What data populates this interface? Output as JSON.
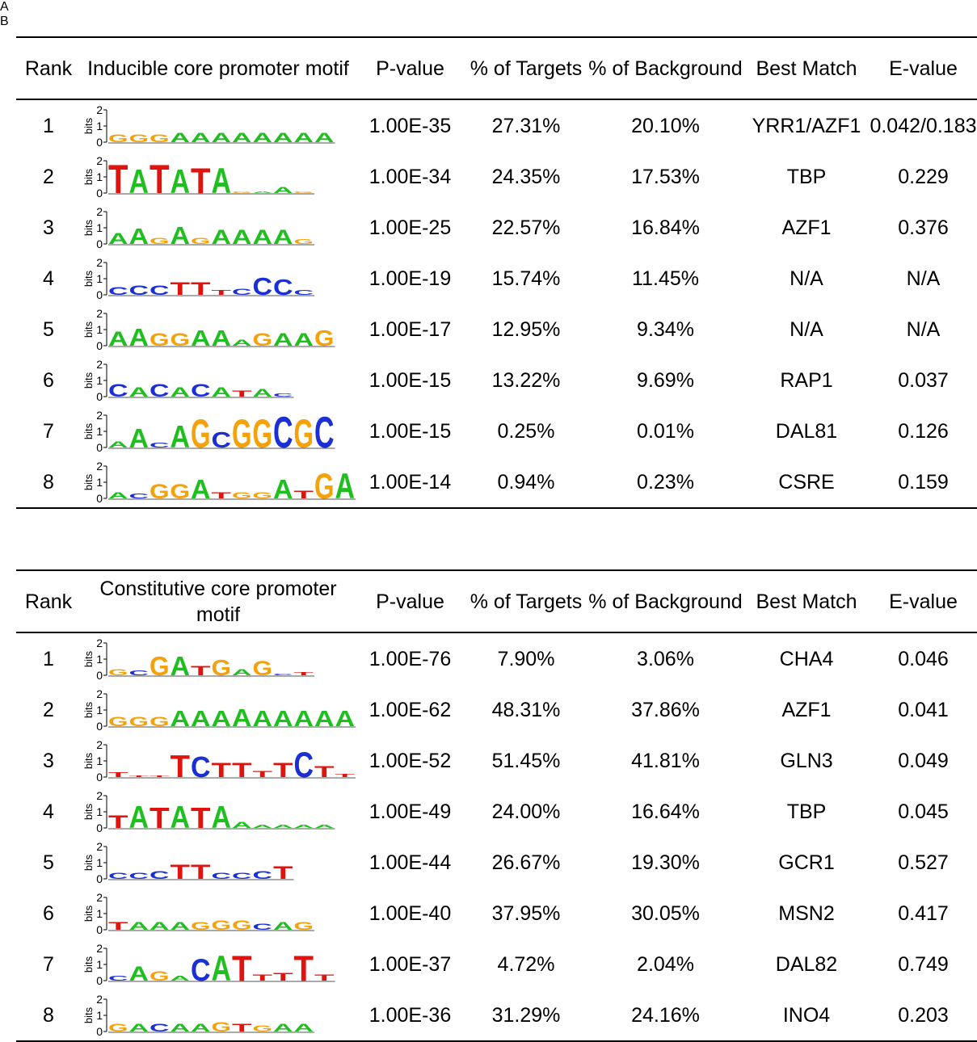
{
  "panels": [
    {
      "label": "A",
      "header": [
        "Rank",
        "Inducible core promoter motif",
        "P-value",
        "% of Targets",
        "% of Background",
        "Best Match",
        "E-value"
      ],
      "rows": [
        {
          "rank": 1,
          "logo": {
            "letters": [
              "G",
              "G",
              "G",
              "A",
              "A",
              "A",
              "A",
              "A",
              "A",
              "A",
              "A"
            ],
            "heights": [
              0.5,
              0.5,
              0.5,
              0.6,
              0.6,
              0.6,
              0.6,
              0.6,
              0.6,
              0.6,
              0.6
            ]
          },
          "p_value": "1.00E-35",
          "targets": "27.31%",
          "background": "20.10%",
          "best_match": "YRR1/AZF1",
          "e_value": "0.042/0.183"
        },
        {
          "rank": 2,
          "logo": {
            "letters": [
              "T",
              "A",
              "T",
              "A",
              "T",
              "A",
              "G",
              "A",
              "A",
              "G"
            ],
            "heights": [
              1.8,
              1.5,
              1.8,
              1.5,
              1.6,
              1.6,
              0.1,
              0.1,
              0.4,
              0.1
            ]
          },
          "p_value": "1.00E-34",
          "targets": "24.35%",
          "background": "17.53%",
          "best_match": "TBP",
          "e_value": "0.229"
        },
        {
          "rank": 3,
          "logo": {
            "letters": [
              "A",
              "A",
              "G",
              "A",
              "G",
              "A",
              "A",
              "A",
              "A",
              "G"
            ],
            "heights": [
              0.7,
              1.0,
              0.4,
              1.1,
              0.4,
              0.9,
              0.9,
              0.9,
              0.9,
              0.3
            ]
          },
          "p_value": "1.00E-25",
          "targets": "22.57%",
          "background": "16.84%",
          "best_match": "AZF1",
          "e_value": "0.376"
        },
        {
          "rank": 4,
          "logo": {
            "letters": [
              "C",
              "C",
              "C",
              "T",
              "T",
              "T",
              "C",
              "C",
              "C",
              "C"
            ],
            "heights": [
              0.5,
              0.6,
              0.6,
              0.8,
              0.8,
              0.3,
              0.4,
              1.1,
              1.0,
              0.3
            ]
          },
          "p_value": "1.00E-19",
          "targets": "15.74%",
          "background": "11.45%",
          "best_match": "N/A",
          "e_value": "N/A"
        },
        {
          "rank": 5,
          "logo": {
            "letters": [
              "A",
              "A",
              "G",
              "G",
              "A",
              "A",
              "A",
              "G",
              "A",
              "A",
              "G"
            ],
            "heights": [
              0.9,
              1.1,
              0.8,
              0.8,
              1.0,
              1.0,
              0.4,
              0.8,
              0.8,
              0.8,
              1.0
            ]
          },
          "p_value": "1.00E-17",
          "targets": "12.95%",
          "background": "9.34%",
          "best_match": "N/A",
          "e_value": "N/A"
        },
        {
          "rank": 6,
          "logo": {
            "letters": [
              "C",
              "A",
              "C",
              "A",
              "C",
              "A",
              "T",
              "A",
              "C"
            ],
            "heights": [
              0.8,
              0.6,
              0.8,
              0.6,
              0.8,
              0.6,
              0.4,
              0.5,
              0.2
            ]
          },
          "p_value": "1.00E-15",
          "targets": "13.22%",
          "background": "9.69%",
          "best_match": "RAP1",
          "e_value": "0.037"
        },
        {
          "rank": 7,
          "logo": {
            "letters": [
              "A",
              "A",
              "C",
              "A",
              "G",
              "C",
              "G",
              "G",
              "C",
              "G",
              "C"
            ],
            "heights": [
              0.4,
              1.2,
              0.3,
              1.4,
              1.8,
              1.0,
              1.8,
              1.8,
              2.0,
              1.8,
              2.0
            ]
          },
          "p_value": "1.00E-15",
          "targets": "0.25%",
          "background": "0.01%",
          "best_match": "DAL81",
          "e_value": "0.126"
        },
        {
          "rank": 8,
          "logo": {
            "letters": [
              "A",
              "C",
              "G",
              "G",
              "A",
              "T",
              "G",
              "G",
              "A",
              "T",
              "G",
              "A"
            ],
            "heights": [
              0.4,
              0.3,
              0.9,
              0.9,
              1.2,
              0.4,
              0.4,
              0.4,
              1.2,
              0.5,
              1.6,
              1.6
            ]
          },
          "p_value": "1.00E-14",
          "targets": "0.94%",
          "background": "0.23%",
          "best_match": "CSRE",
          "e_value": "0.159"
        }
      ]
    },
    {
      "label": "B",
      "header": [
        "Rank",
        "Constitutive core promoter motif",
        "P-value",
        "% of Targets",
        "% of Background",
        "Best Match",
        "E-value"
      ],
      "rows": [
        {
          "rank": 1,
          "logo": {
            "letters": [
              "G",
              "C",
              "G",
              "A",
              "T",
              "G",
              "A",
              "G",
              "C",
              "T"
            ],
            "heights": [
              0.4,
              0.3,
              1.2,
              1.2,
              0.6,
              1.0,
              0.4,
              0.9,
              0.1,
              0.2
            ]
          },
          "p_value": "1.00E-76",
          "targets": "7.90%",
          "background": "3.06%",
          "best_match": "CHA4",
          "e_value": "0.046"
        },
        {
          "rank": 2,
          "logo": {
            "letters": [
              "G",
              "G",
              "G",
              "A",
              "A",
              "A",
              "A",
              "A",
              "A",
              "A",
              "A",
              "A"
            ],
            "heights": [
              0.6,
              0.6,
              0.6,
              1.0,
              1.0,
              1.0,
              1.1,
              1.0,
              1.0,
              1.0,
              1.0,
              1.0
            ]
          },
          "p_value": "1.00E-62",
          "targets": "48.31%",
          "background": "37.86%",
          "best_match": "AZF1",
          "e_value": "0.041"
        },
        {
          "rank": 3,
          "logo": {
            "letters": [
              "T",
              "T",
              "T",
              "T",
              "C",
              "T",
              "T",
              "T",
              "T",
              "C",
              "T",
              "T"
            ],
            "heights": [
              0.3,
              0.1,
              0.1,
              1.4,
              1.3,
              0.9,
              0.9,
              0.4,
              0.9,
              1.6,
              0.7,
              0.2
            ]
          },
          "p_value": "1.00E-52",
          "targets": "51.45%",
          "background": "41.81%",
          "best_match": "GLN3",
          "e_value": "0.049"
        },
        {
          "rank": 4,
          "logo": {
            "letters": [
              "T",
              "A",
              "T",
              "A",
              "T",
              "A",
              "A",
              "A",
              "A",
              "A",
              "A"
            ],
            "heights": [
              0.8,
              1.4,
              1.3,
              1.4,
              1.3,
              1.4,
              0.4,
              0.2,
              0.2,
              0.2,
              0.2
            ]
          },
          "p_value": "1.00E-49",
          "targets": "24.00%",
          "background": "16.64%",
          "best_match": "TBP",
          "e_value": "0.045"
        },
        {
          "rank": 5,
          "logo": {
            "letters": [
              "C",
              "C",
              "C",
              "T",
              "T",
              "C",
              "C",
              "C",
              "T"
            ],
            "heights": [
              0.4,
              0.4,
              0.5,
              0.9,
              0.9,
              0.4,
              0.4,
              0.5,
              0.8
            ]
          },
          "p_value": "1.00E-44",
          "targets": "26.67%",
          "background": "19.30%",
          "best_match": "GCR1",
          "e_value": "0.527"
        },
        {
          "rank": 6,
          "logo": {
            "letters": [
              "T",
              "A",
              "A",
              "A",
              "G",
              "G",
              "G",
              "C",
              "A",
              "G"
            ],
            "heights": [
              0.5,
              0.5,
              0.5,
              0.5,
              0.5,
              0.6,
              0.6,
              0.4,
              0.5,
              0.5
            ]
          },
          "p_value": "1.00E-40",
          "targets": "37.95%",
          "background": "30.05%",
          "best_match": "MSN2",
          "e_value": "0.417"
        },
        {
          "rank": 7,
          "logo": {
            "letters": [
              "C",
              "A",
              "G",
              "A",
              "C",
              "A",
              "T",
              "T",
              "T",
              "T",
              "T"
            ],
            "heights": [
              0.3,
              0.9,
              0.6,
              0.3,
              1.4,
              1.6,
              1.6,
              0.4,
              0.5,
              1.6,
              0.4
            ]
          },
          "p_value": "1.00E-37",
          "targets": "4.72%",
          "background": "2.04%",
          "best_match": "DAL82",
          "e_value": "0.749"
        },
        {
          "rank": 8,
          "logo": {
            "letters": [
              "G",
              "A",
              "C",
              "A",
              "A",
              "G",
              "T",
              "G",
              "A",
              "A"
            ],
            "heights": [
              0.5,
              0.5,
              0.5,
              0.5,
              0.5,
              0.6,
              0.5,
              0.4,
              0.5,
              0.5
            ]
          },
          "p_value": "1.00E-36",
          "targets": "31.29%",
          "background": "24.16%",
          "best_match": "INO4",
          "e_value": "0.203"
        }
      ]
    }
  ],
  "logo_axis": {
    "label": "bits",
    "ticks": [
      0,
      1,
      2
    ]
  }
}
